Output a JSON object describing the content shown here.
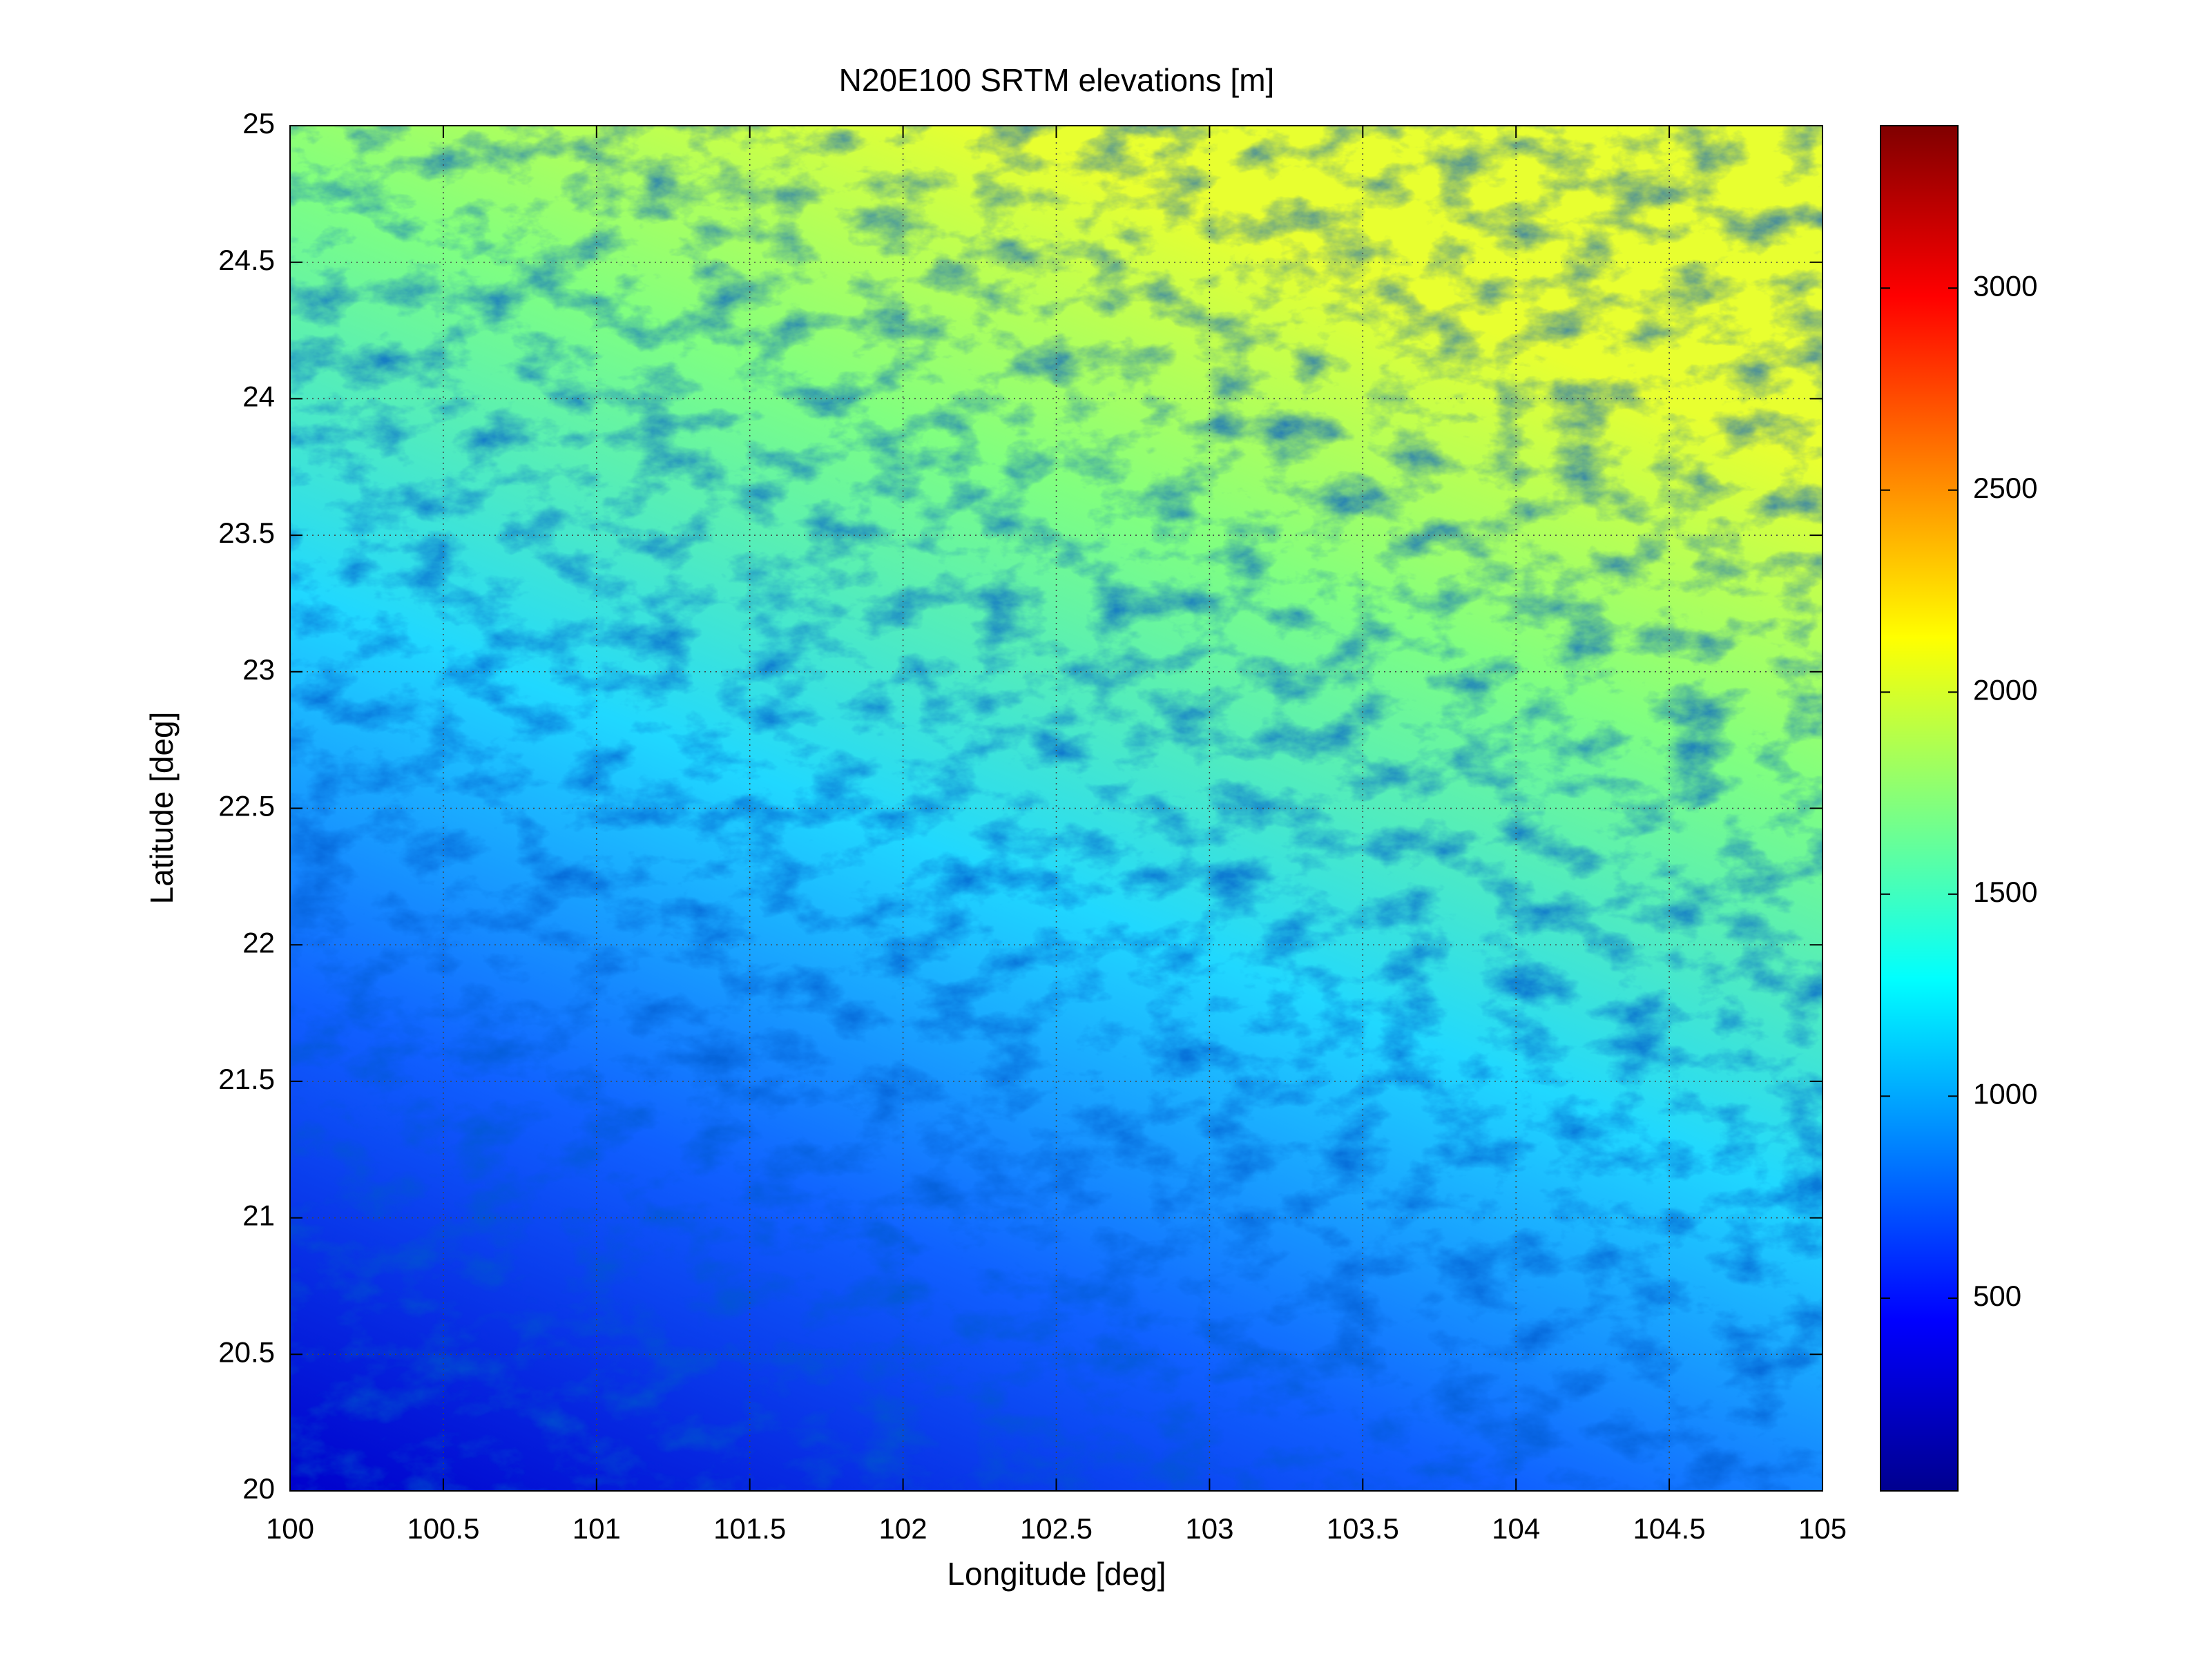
{
  "chart_data": {
    "type": "heatmap",
    "title": "N20E100 SRTM elevations [m]",
    "xlabel": "Longitude [deg]",
    "ylabel": "Latitude [deg]",
    "xlim": [
      100,
      105
    ],
    "xticks": [
      100,
      100.5,
      101,
      101.5,
      102,
      102.5,
      103,
      103.5,
      104,
      104.5,
      105
    ],
    "ylim": [
      20,
      25
    ],
    "yticks": [
      20,
      20.5,
      21,
      21.5,
      22,
      22.5,
      23,
      23.5,
      24,
      24.5,
      25
    ],
    "grid": true,
    "colormap": "jet",
    "clim": [
      23,
      3402
    ],
    "colorbar_ticks": [
      500,
      1000,
      1500,
      2000,
      2500,
      3000
    ]
  }
}
